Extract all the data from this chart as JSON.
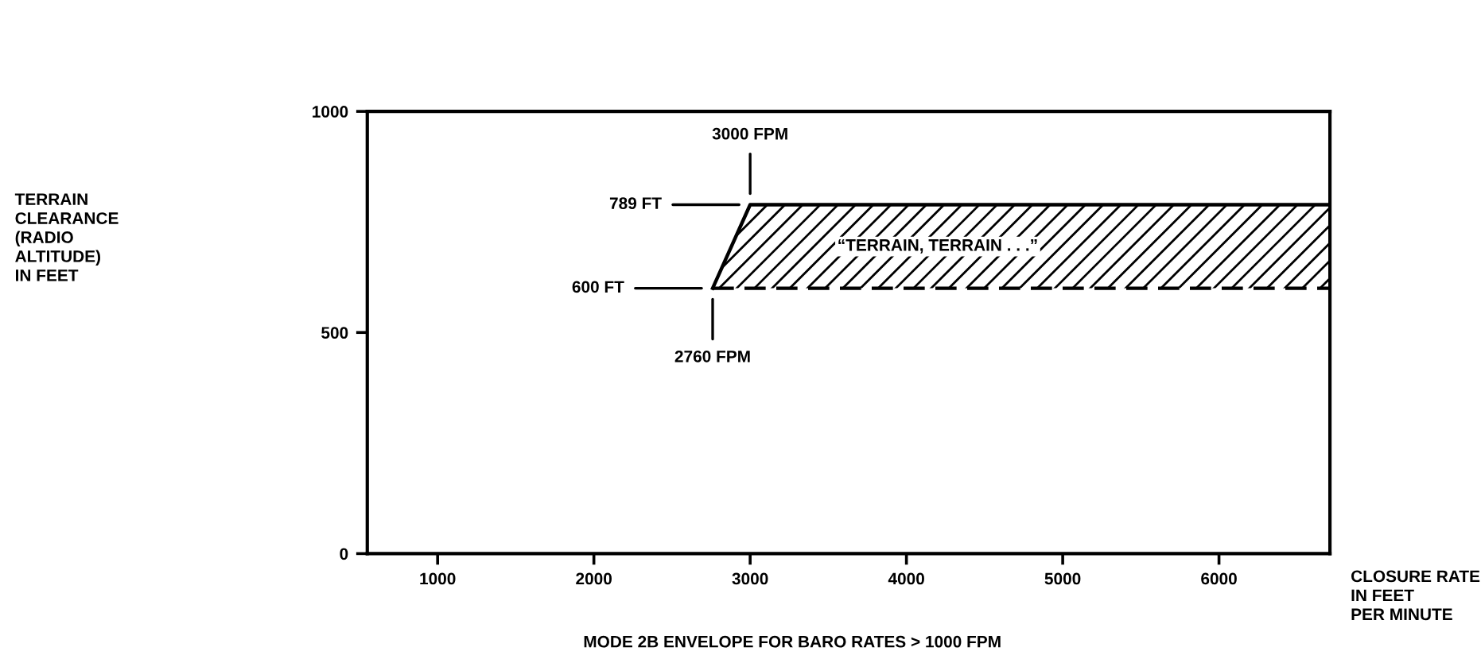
{
  "chart_data": {
    "type": "area",
    "xlabel": "CLOSURE RATE\nIN FEET\nPER MINUTE",
    "xlim": [
      550,
      6710
    ],
    "ylim": [
      0,
      1000
    ],
    "xticks": [
      1000,
      2000,
      3000,
      4000,
      5000,
      6000
    ],
    "yticks": [
      0,
      500,
      1000
    ],
    "grid": false,
    "legend": false,
    "series": [
      {
        "color": "#000000",
        "x": [
          2760,
          3000,
          6710
        ],
        "values": [
          600,
          789,
          789
        ]
      },
      {
        "type": "line",
        "line_style": "dashed",
        "color": "#000000",
        "x": [
          2760,
          6710
        ],
        "values": [
          600,
          600
        ]
      }
    ],
    "annotations": [
      "789 FT",
      "3000 FPM",
      "600 FT",
      "2760 FPM",
      "“TERRAIN, TERRAIN . . .”",
      "MODE 2B ENVELOPE FOR BARO RATES > 1000 FPM",
      "TERRAIN\nCLEARANCE\n(RADIO\nALTITUDE)\nIN FEET"
    ]
  }
}
